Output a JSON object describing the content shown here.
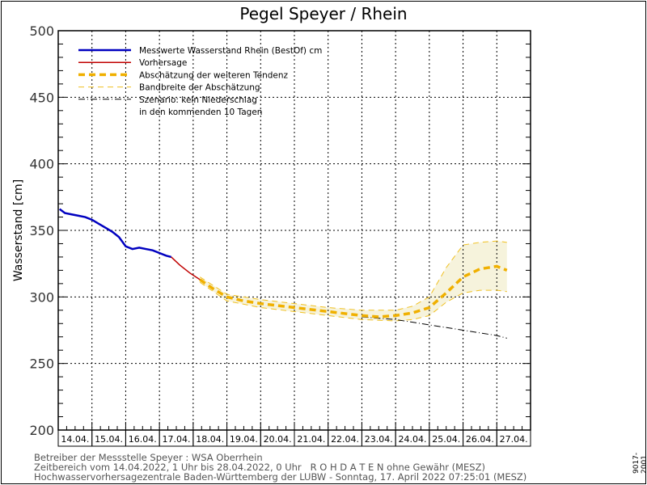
{
  "chart_data": {
    "type": "line",
    "title": "Pegel Speyer / Rhein",
    "ylabel": "Wasserstand [cm]",
    "xlabel": "",
    "ylim": [
      200,
      500
    ],
    "yticks": [
      200,
      250,
      300,
      350,
      400,
      450,
      500
    ],
    "x_unit": "days since 14.04.2022 00:00",
    "xlim": [
      0,
      14
    ],
    "xtick_labels": [
      "14.04.",
      "15.04.",
      "16.04.",
      "17.04.",
      "18.04.",
      "19.04.",
      "20.04.",
      "21.04.",
      "22.04.",
      "23.04.",
      "24.04.",
      "25.04.",
      "26.04.",
      "27.04."
    ],
    "grid": true,
    "legend_position": "top-left",
    "legend": [
      {
        "label": "Messwerte Wasserstand Rhein (BestOf)  cm",
        "color": "#0000c0",
        "style": "solid-thick"
      },
      {
        "label": "Vorhersage",
        "color": "#c00000",
        "style": "solid"
      },
      {
        "label": "Abschätzung der weiteren Tendenz",
        "color": "#f0b400",
        "style": "dashed-thick"
      },
      {
        "label": "Bandbreite der Abschätzung",
        "color": "#f0c000",
        "style": "dashed-thin"
      },
      {
        "label": "Szenario: kein Niederschlag",
        "color": "#000000",
        "style": "dash-dot"
      },
      {
        "label": "in den kommenden 10 Tagen",
        "color": "",
        "style": "none"
      }
    ],
    "series": [
      {
        "name": "Messwerte",
        "x": [
          0.04,
          0.2,
          0.4,
          0.6,
          0.8,
          1.0,
          1.2,
          1.4,
          1.6,
          1.8,
          2.0,
          2.2,
          2.4,
          2.6,
          2.8,
          3.0,
          3.2,
          3.35
        ],
        "y": [
          366,
          363,
          362,
          361,
          360,
          358,
          355,
          352,
          349,
          345,
          338,
          336,
          337,
          336,
          335,
          333,
          331,
          330
        ]
      },
      {
        "name": "Vorhersage",
        "x": [
          3.35,
          3.6,
          3.9,
          4.2
        ],
        "y": [
          330,
          324,
          318,
          313
        ]
      },
      {
        "name": "Tendenz",
        "x": [
          4.2,
          4.6,
          5.0,
          5.5,
          6.0,
          7.0,
          8.0,
          9.0,
          9.5,
          10.0,
          10.5,
          11.0,
          11.5,
          12.0,
          12.5,
          13.0,
          13.3
        ],
        "y": [
          313,
          306,
          300,
          297,
          295,
          292,
          289,
          286,
          285,
          286,
          288,
          292,
          303,
          315,
          321,
          323,
          320
        ]
      },
      {
        "name": "Band oben",
        "x": [
          4.2,
          5.0,
          6.0,
          7.0,
          8.0,
          9.0,
          10.0,
          10.5,
          11.0,
          11.5,
          12.0,
          12.5,
          13.0,
          13.3
        ],
        "y": [
          315,
          302,
          298,
          295,
          292,
          290,
          290,
          293,
          300,
          322,
          339,
          341,
          342,
          341
        ]
      },
      {
        "name": "Band unten",
        "x": [
          4.2,
          5.0,
          6.0,
          7.0,
          8.0,
          9.0,
          10.0,
          10.5,
          11.0,
          11.5,
          12.0,
          12.5,
          13.0,
          13.3
        ],
        "y": [
          311,
          297,
          292,
          289,
          286,
          283,
          282,
          283,
          286,
          296,
          303,
          305,
          305,
          304
        ]
      },
      {
        "name": "Szenario",
        "x": [
          9.0,
          10.0,
          11.0,
          12.0,
          13.0,
          13.3
        ],
        "y": [
          285,
          283,
          279,
          275,
          271,
          269
        ]
      }
    ]
  },
  "footer": {
    "line1": "Betreiber der Messstelle Speyer : WSA Oberrhein",
    "line2": "Zeitbereich vom 14.04.2022, 1 Uhr bis 28.04.2022, 0 Uhr   R O H D A T E N ohne Gewähr (MESZ)",
    "line3": "Hochwasservorhersagezentrale Baden-Württemberg der LUBW - Sonntag, 17. April 2022 07:25:01 (MESZ)",
    "side_code": "9017-2001"
  }
}
